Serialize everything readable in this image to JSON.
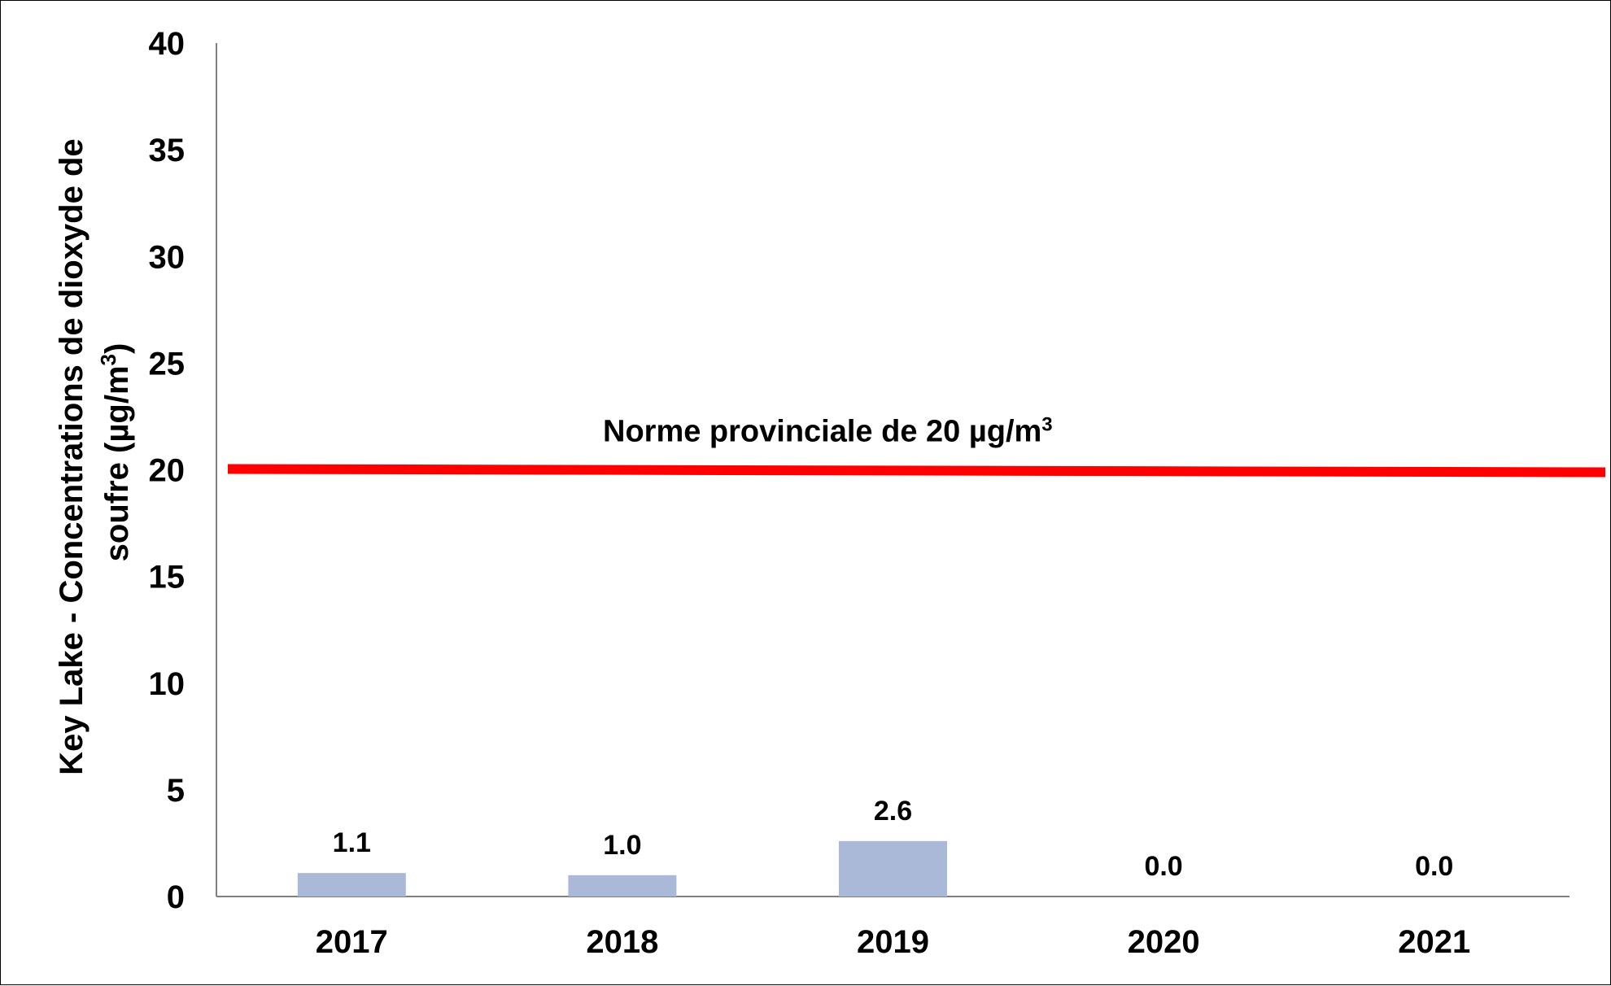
{
  "chart_data": {
    "type": "bar",
    "categories": [
      "2017",
      "2018",
      "2019",
      "2020",
      "2021"
    ],
    "values": [
      1.1,
      1.0,
      2.6,
      0.0,
      0.0
    ],
    "data_labels": [
      "1.1",
      "1.0",
      "2.6",
      "0.0",
      "0.0"
    ],
    "title": "",
    "xlabel": "",
    "ylabel_line1": "Key Lake - Concentrations de dioxyde de",
    "ylabel_line2": "soufre (µg/m",
    "ylabel_sup": "3",
    "ylabel_end": ")",
    "ylim": [
      0,
      40
    ],
    "yticks": [
      0,
      5,
      10,
      15,
      20,
      25,
      30,
      35,
      40
    ],
    "grid": false,
    "legend": "none",
    "reference_line": {
      "value": 20,
      "label": "Norme provinciale de 20 µg/m",
      "label_sup": "3",
      "color": "#ff0000"
    },
    "bar_color": "#aab9d7"
  }
}
